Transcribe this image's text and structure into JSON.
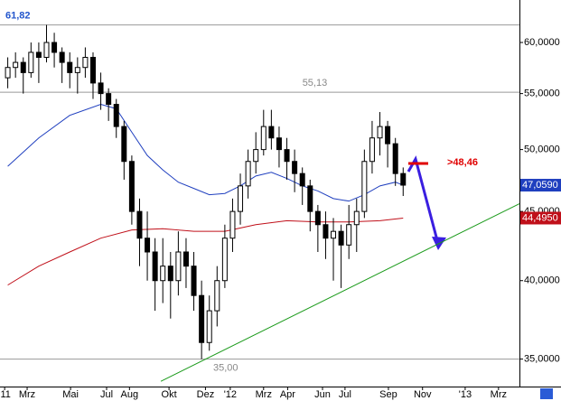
{
  "chart_data": {
    "type": "candlestick",
    "y_scale": "log",
    "xlim": [
      -1,
      66
    ],
    "ylim": [
      33.4,
      64.5
    ],
    "yticks": [
      {
        "value": 35,
        "label": "35,0000"
      },
      {
        "value": 40,
        "label": "40,0000"
      },
      {
        "value": 45,
        "label": "45,0000"
      },
      {
        "value": 50,
        "label": "50,0000"
      },
      {
        "value": 55,
        "label": "55,0000"
      },
      {
        "value": 60,
        "label": "60,0000"
      }
    ],
    "xticks": [
      {
        "value": -0.4,
        "label": "'11"
      },
      {
        "value": 2.5,
        "label": "Mrz"
      },
      {
        "value": 8.1,
        "label": "Mai"
      },
      {
        "value": 12.75,
        "label": "Jul"
      },
      {
        "value": 15.7,
        "label": "Aug"
      },
      {
        "value": 20.8,
        "label": "Okt"
      },
      {
        "value": 25.5,
        "label": "Dez"
      },
      {
        "value": 28.7,
        "label": "'12"
      },
      {
        "value": 33.0,
        "label": "Mrz"
      },
      {
        "value": 36.1,
        "label": "Apr"
      },
      {
        "value": 40.6,
        "label": "Jun"
      },
      {
        "value": 43.5,
        "label": "Jul"
      },
      {
        "value": 49.1,
        "label": "Sep"
      },
      {
        "value": 53.5,
        "label": "Nov"
      },
      {
        "value": 59.0,
        "label": "'13"
      },
      {
        "value": 63.3,
        "label": "Mrz"
      }
    ],
    "candles": {
      "open": [
        56.5,
        57.5,
        58,
        57,
        59,
        58.5,
        60,
        59,
        58,
        57,
        57.5,
        58.5,
        56,
        55,
        54,
        52,
        49,
        45,
        43,
        42,
        40,
        41,
        40,
        42,
        41,
        39,
        36,
        38,
        40,
        43,
        45,
        47,
        49,
        50,
        52,
        51,
        50,
        49,
        48,
        47,
        45,
        44,
        43,
        43.5,
        42.5,
        44,
        45,
        49,
        51,
        52,
        50.5,
        48
      ],
      "high": [
        58.5,
        59,
        58.5,
        60,
        60,
        61.82,
        61,
        59.5,
        59,
        58.5,
        59.5,
        59,
        57,
        55.5,
        54.5,
        52.5,
        49.5,
        46,
        45,
        43,
        43,
        42,
        43.5,
        43,
        42,
        40,
        39,
        41,
        44,
        46,
        48,
        50,
        51.5,
        53.5,
        53.5,
        52,
        51,
        50,
        48.5,
        47.5,
        45.5,
        45,
        44.5,
        44,
        45.5,
        46,
        50,
        52.5,
        53.3,
        52.5,
        51,
        48.5
      ],
      "low": [
        55.5,
        56.5,
        55,
        56.5,
        56,
        58,
        57.5,
        56,
        55.5,
        55,
        56.5,
        54.5,
        53.5,
        52.5,
        51,
        47.5,
        44,
        41,
        40,
        38,
        38.5,
        37.5,
        39,
        39.5,
        38,
        35,
        35.5,
        37,
        39.5,
        42,
        44,
        46,
        48,
        49.5,
        50,
        48.5,
        47.5,
        46.5,
        45.5,
        43.5,
        42,
        41.5,
        40,
        39.5,
        41.5,
        42,
        44.5,
        48,
        49.5,
        48.5,
        47,
        46.2
      ],
      "close": [
        57.5,
        58,
        57,
        59,
        58.5,
        60,
        59,
        58,
        57,
        57.5,
        58.5,
        56,
        55,
        54,
        52,
        49,
        45,
        43,
        42,
        40,
        41,
        40,
        42,
        41,
        39,
        36,
        38,
        40,
        43,
        45,
        47,
        49,
        50,
        52,
        51,
        50,
        49,
        48,
        47,
        45,
        44,
        43,
        43.5,
        42.5,
        44,
        45,
        49,
        51,
        52,
        50.5,
        48,
        47.06
      ],
      "up_color": "#ffffff",
      "down_color": "#000000"
    },
    "lines": [
      {
        "color": "#1f3fbf",
        "x": [
          0,
          4,
          8,
          12,
          14,
          16,
          18,
          20,
          22,
          24,
          26,
          28,
          30,
          32,
          34,
          36,
          38,
          40,
          42,
          44,
          46,
          48,
          50,
          51
        ],
        "values": [
          48.6,
          51,
          53,
          54,
          53.6,
          51.5,
          49.5,
          48.3,
          47.3,
          46.8,
          46.3,
          46.4,
          47,
          47.8,
          48.1,
          47.6,
          47,
          46.6,
          46,
          45.8,
          46.3,
          47,
          47.3,
          47.059
        ],
        "last_label": "47,0590"
      },
      {
        "color": "#c0101a",
        "x": [
          0,
          4,
          8,
          12,
          16,
          20,
          24,
          28,
          32,
          36,
          40,
          44,
          48,
          51
        ],
        "values": [
          39.7,
          41,
          42,
          43,
          43.6,
          43.7,
          43.5,
          43.5,
          44,
          44.3,
          44.2,
          44.2,
          44.3,
          44.495
        ],
        "last_label": "44,4950"
      }
    ],
    "levels": [
      {
        "value": 61.82,
        "label": "61,82",
        "color": "#2255cc",
        "x": -0.3
      },
      {
        "value": 55.13,
        "label": "55,13",
        "color": "#888888",
        "x": 38
      },
      {
        "value": 35.0,
        "label": "35,00",
        "color": "#888888",
        "x": 26.5
      }
    ],
    "trendline": {
      "x": [
        19.75,
        66
      ],
      "values": [
        33.7,
        45.6
      ],
      "color": "#1a9a1a"
    },
    "target": {
      "value": 48.46,
      "label": ">48,46",
      "color": "#e00000"
    }
  }
}
